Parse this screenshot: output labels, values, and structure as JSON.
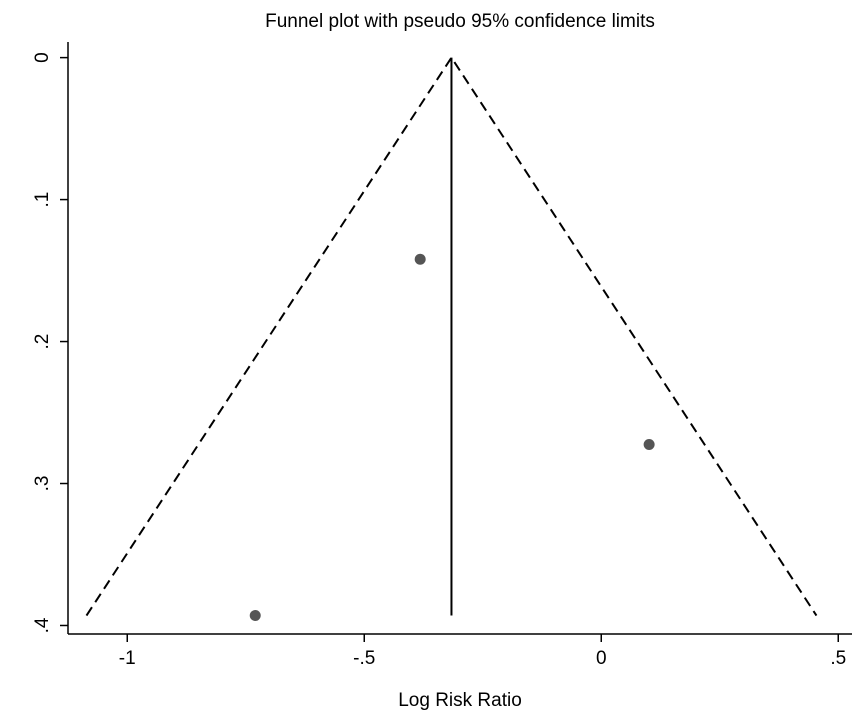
{
  "chart_data": {
    "type": "scatter",
    "title": "Funnel plot with pseudo 95% confidence limits",
    "x_label": "Log Risk Ratio",
    "x": [
      -0.382,
      0.101,
      -0.73
    ],
    "values": [
      0.142,
      0.2725,
      0.393
    ],
    "color": "#555555",
    "lines": [
      {
        "style": "solid",
        "color": "#000000",
        "x": [
          -0.316,
          -0.316
        ],
        "values": [
          0,
          0.393
        ]
      },
      {
        "style": "dashed",
        "color": "#000000",
        "x": [
          -1.086,
          -0.316,
          0.454
        ],
        "values": [
          0.393,
          0,
          0.393
        ]
      }
    ],
    "xlim": [
      -1.125,
      0.529
    ],
    "xticks": [
      -1,
      {
        "value": -0.5,
        "label": "-.5"
      },
      0,
      {
        "value": 0.5,
        "label": ".5"
      }
    ],
    "ylim": [
      -0.011,
      0.406
    ],
    "y_inverted": true,
    "yticks": [
      0,
      {
        "value": 0.1,
        "label": ".1"
      },
      {
        "value": 0.2,
        "label": ".2"
      },
      {
        "value": 0.3,
        "label": ".3"
      },
      {
        "value": 0.4,
        "label": ".4"
      }
    ],
    "grid": false
  }
}
